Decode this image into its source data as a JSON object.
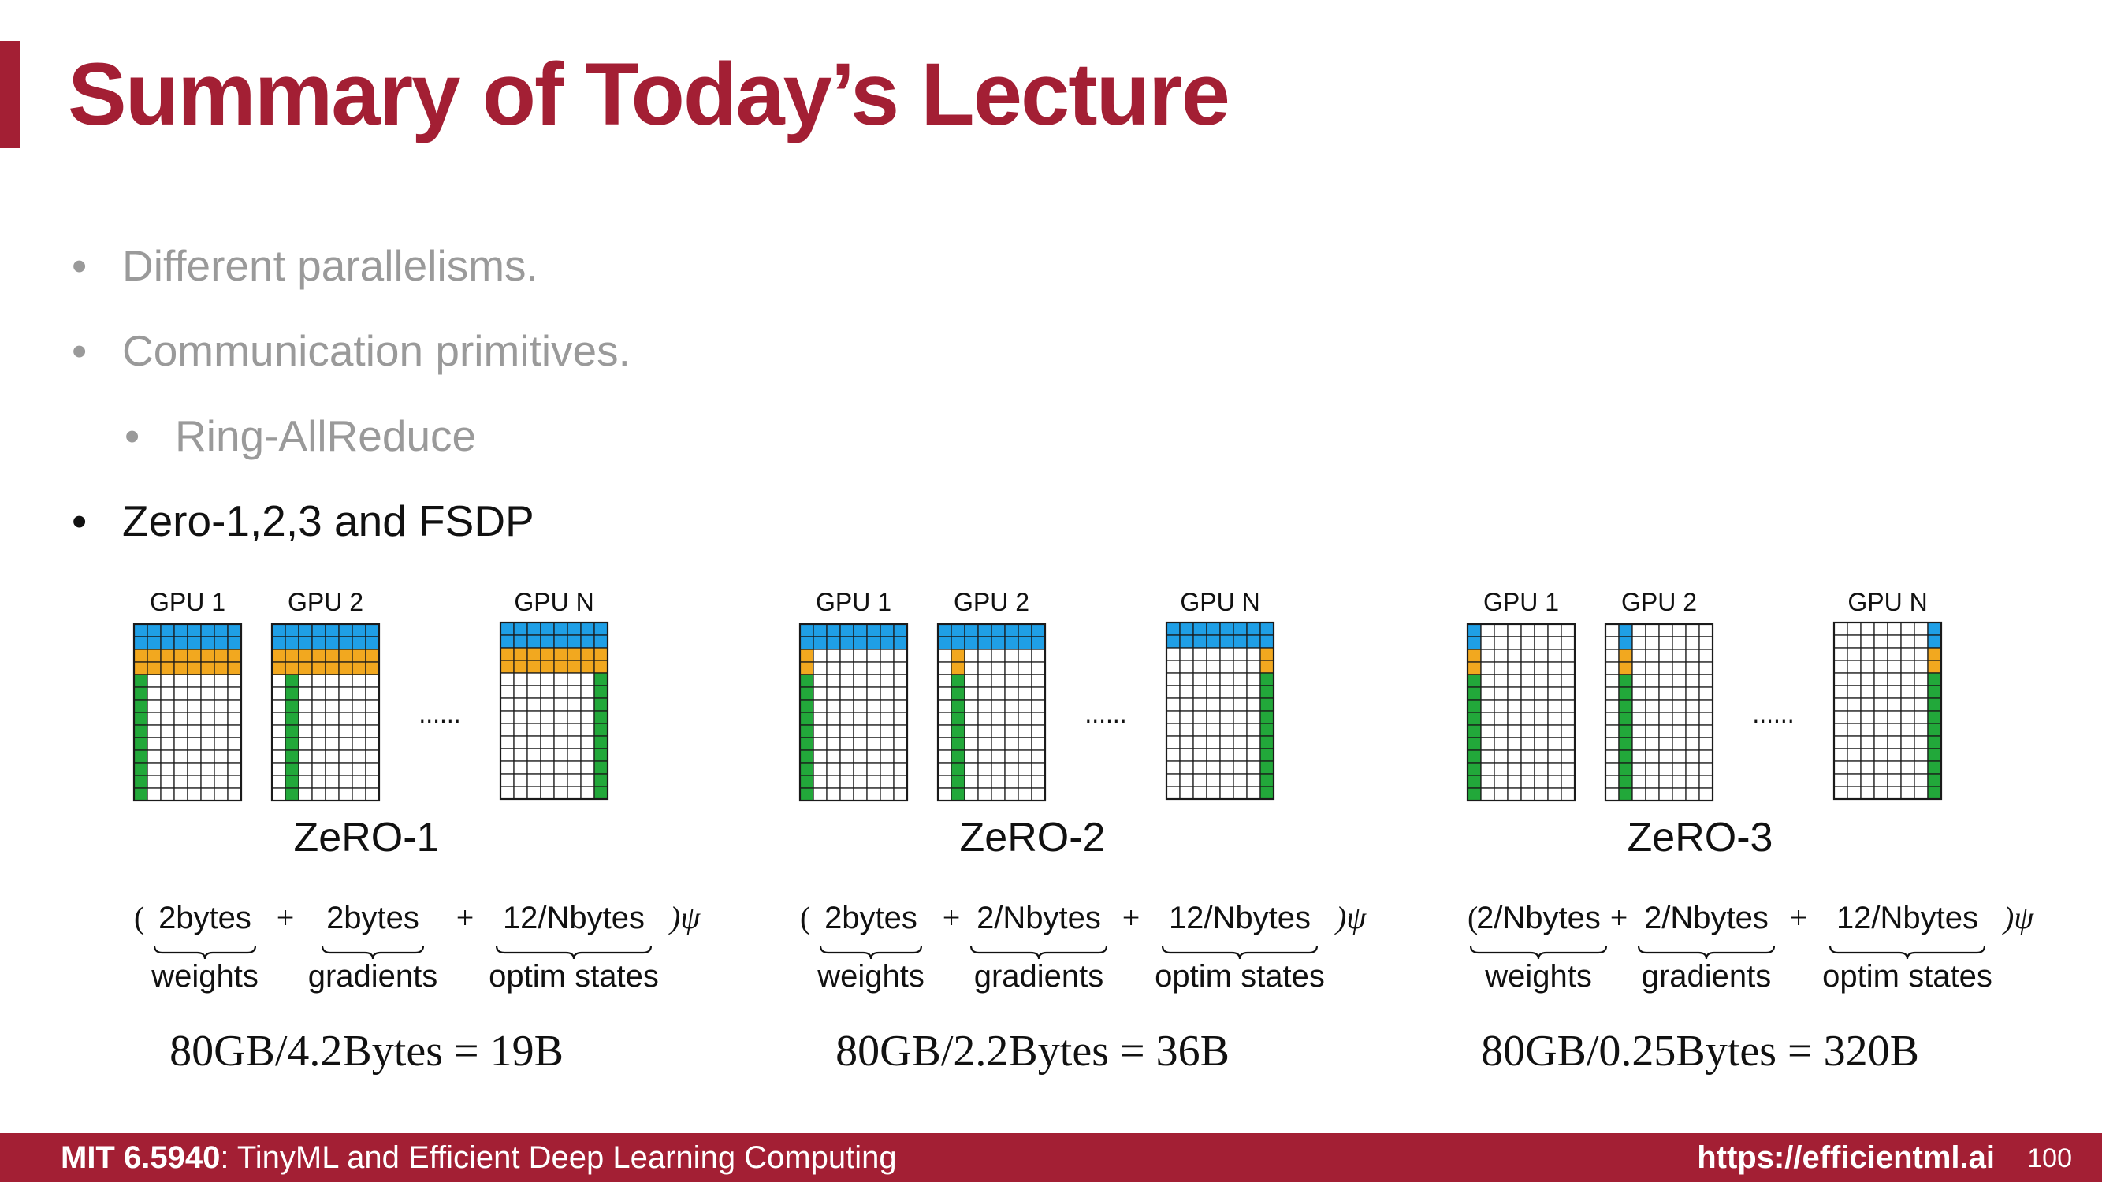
{
  "slide": {
    "title": "Summary of Today’s Lecture",
    "bullets": [
      {
        "text": "Different parallelisms.",
        "level": 1,
        "state": "muted"
      },
      {
        "text": "Communication primitives.",
        "level": 1,
        "state": "muted"
      },
      {
        "text": "Ring-AllReduce",
        "level": 2,
        "state": "muted"
      },
      {
        "text": "Zero-1,2,3 and FSDP",
        "level": 1,
        "state": "active"
      }
    ],
    "bullet_glyph": "•"
  },
  "colors": {
    "accent": "#a31f34",
    "weights": "#1f9fe6",
    "gradients": "#f2a81f",
    "optim_states": "#22a83a",
    "grid_line": "#1a1a1a",
    "muted_text": "#9a9a9a"
  },
  "diagram": {
    "gpu_labels": [
      "GPU 1",
      "GPU 2",
      "GPU N"
    ],
    "ellipsis": "......",
    "panels": [
      {
        "name": "ZeRO-1",
        "gpu_state": [
          {
            "weights": "all",
            "gradients": "all",
            "optim": "col0"
          },
          {
            "weights": "all",
            "gradients": "all",
            "optim": "col1"
          },
          {
            "weights": "all",
            "gradients": "all",
            "optim": "last"
          }
        ],
        "formula_terms": [
          "2bytes",
          "2bytes",
          "12/Nbytes"
        ],
        "term_labels": [
          "weights",
          "gradients",
          "optim states"
        ],
        "result": "80GB/4.2Bytes = 19B"
      },
      {
        "name": "ZeRO-2",
        "gpu_state": [
          {
            "weights": "all",
            "gradients": "col0",
            "optim": "col0"
          },
          {
            "weights": "all",
            "gradients": "col1",
            "optim": "col1"
          },
          {
            "weights": "all",
            "gradients": "last",
            "optim": "last"
          }
        ],
        "formula_terms": [
          "2bytes",
          "2/Nbytes",
          "12/Nbytes"
        ],
        "term_labels": [
          "weights",
          "gradients",
          "optim states"
        ],
        "result": "80GB/2.2Bytes = 36B"
      },
      {
        "name": "ZeRO-3",
        "gpu_state": [
          {
            "weights": "col0",
            "gradients": "col0",
            "optim": "col0"
          },
          {
            "weights": "col1",
            "gradients": "col1",
            "optim": "col1"
          },
          {
            "weights": "last",
            "gradients": "last",
            "optim": "last"
          }
        ],
        "formula_terms": [
          "2/Nbytes",
          "2/Nbytes",
          "12/Nbytes"
        ],
        "term_labels": [
          "weights",
          "gradients",
          "optim states"
        ],
        "result": "80GB/0.25Bytes = 320B"
      }
    ],
    "formula_open": "(",
    "formula_close": ")ψ",
    "plus": "+"
  },
  "footer": {
    "course_code": "MIT 6.5940",
    "course_title": ": TinyML and Efficient Deep Learning Computing",
    "url": "https://efficientml.ai",
    "page_number": "100"
  }
}
